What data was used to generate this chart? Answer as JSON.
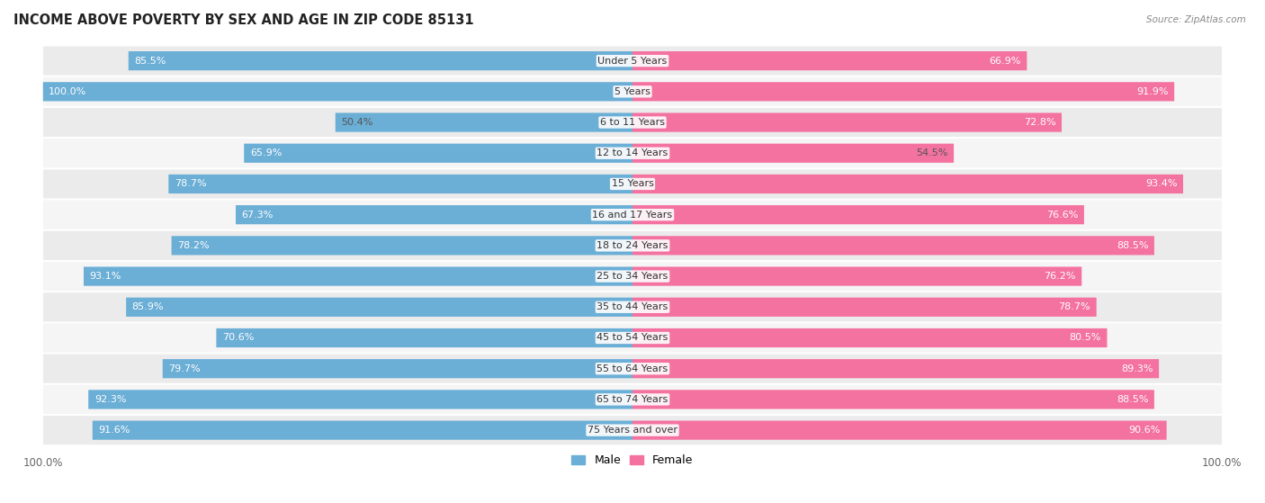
{
  "title": "INCOME ABOVE POVERTY BY SEX AND AGE IN ZIP CODE 85131",
  "source": "Source: ZipAtlas.com",
  "categories": [
    "Under 5 Years",
    "5 Years",
    "6 to 11 Years",
    "12 to 14 Years",
    "15 Years",
    "16 and 17 Years",
    "18 to 24 Years",
    "25 to 34 Years",
    "35 to 44 Years",
    "45 to 54 Years",
    "55 to 64 Years",
    "65 to 74 Years",
    "75 Years and over"
  ],
  "male_values": [
    85.5,
    100.0,
    50.4,
    65.9,
    78.7,
    67.3,
    78.2,
    93.1,
    85.9,
    70.6,
    79.7,
    92.3,
    91.6
  ],
  "female_values": [
    66.9,
    91.9,
    72.8,
    54.5,
    93.4,
    76.6,
    88.5,
    76.2,
    78.7,
    80.5,
    89.3,
    88.5,
    90.6
  ],
  "male_color": "#6baed6",
  "female_color": "#f472a0",
  "male_color_light": "#b8d8ed",
  "female_color_light": "#f9b8d0",
  "row_bg_color": "#ebebeb",
  "row_bg_alt": "#f5f5f5",
  "title_fontsize": 10.5,
  "label_fontsize": 8.0,
  "tick_fontsize": 8.5,
  "max_val": 100.0,
  "white_label_threshold": 60.0
}
